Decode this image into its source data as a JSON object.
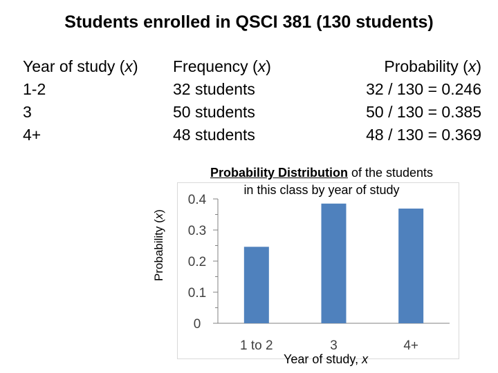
{
  "title": "Students enrolled in QSCI 381 (130 students)",
  "table": {
    "headers": {
      "year_prefix": "Year of study (",
      "freq_prefix": "Frequency (",
      "prob_prefix": "Probability (",
      "var": "x",
      "suffix": ")"
    },
    "year": [
      "1-2",
      "3",
      "4+"
    ],
    "frequency": [
      "32 students",
      "50 students",
      "48 students"
    ],
    "probability": [
      "32 / 130 = 0.246",
      "50 / 130 = 0.385",
      "48 / 130 = 0.369"
    ]
  },
  "chart_data": {
    "type": "bar",
    "title_bold": "Probability Distribution",
    "title_rest": " of the students",
    "title_line2": "in this class by year of study",
    "xlabel_prefix": "Year of study, ",
    "xlabel_var": "x",
    "ylabel_prefix": "Probability (",
    "ylabel_var": "x",
    "ylabel_suffix": ")",
    "categories": [
      "1 to 2",
      "3",
      "4+"
    ],
    "values": [
      0.246,
      0.385,
      0.369
    ],
    "ylim": [
      0,
      0.4
    ],
    "yticks": [
      0,
      0.1,
      0.2,
      0.3,
      0.4
    ],
    "ytick_labels": [
      "0",
      "0.1",
      "0.2",
      "0.3",
      "0.4"
    ],
    "bar_color": "#4f81bd",
    "grid": false
  }
}
